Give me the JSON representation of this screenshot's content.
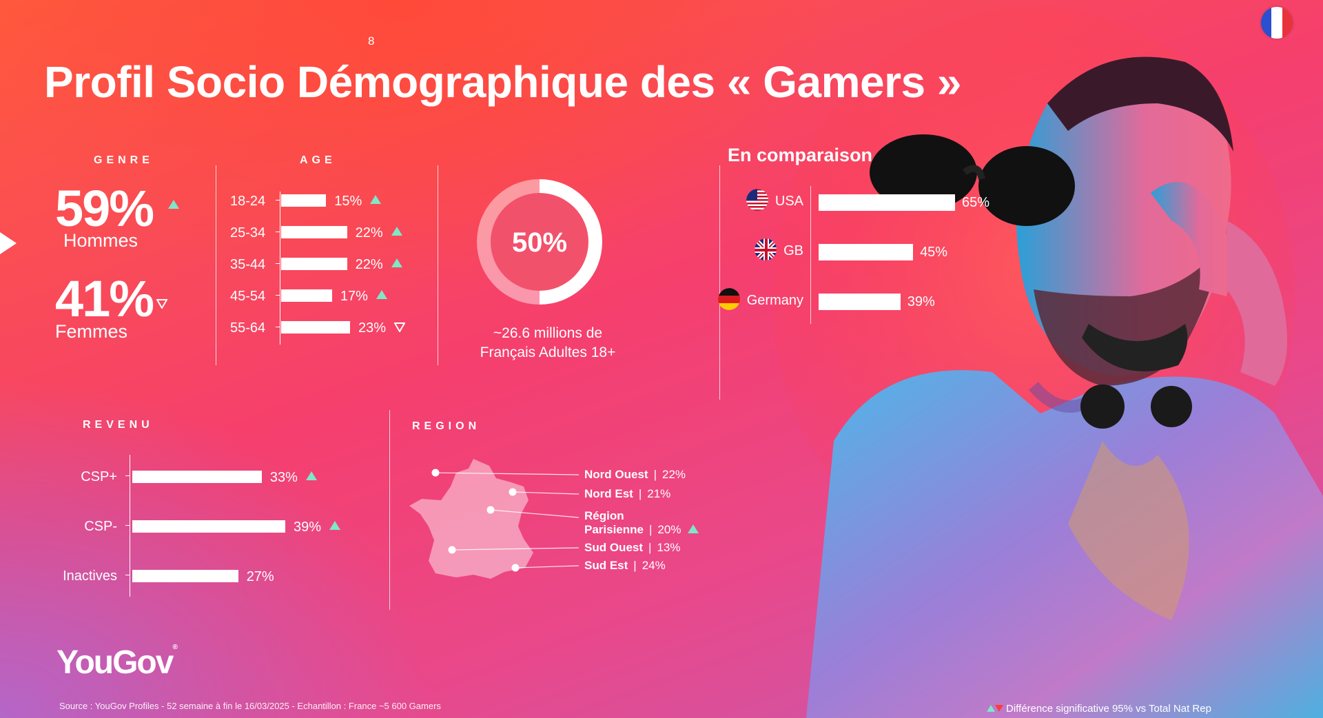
{
  "page_number": "8",
  "title": "Profil Socio Démographique des « Gamers »",
  "genre": {
    "heading": "GENRE",
    "items": [
      {
        "value": "59%",
        "label": "Hommes",
        "sig": "up"
      },
      {
        "value": "41%",
        "label": "Femmes",
        "sig": "down"
      }
    ]
  },
  "age": {
    "heading": "AGE"
  },
  "penetration": {
    "value": "50%",
    "caption_line1": "~26.6 millions de",
    "caption_line2": "Français Adultes 18+"
  },
  "comparison": {
    "title": "En comparaison"
  },
  "revenu": {
    "heading": "REVENU"
  },
  "region": {
    "heading": "REGION"
  },
  "chart_data": [
    {
      "type": "bar",
      "id": "age",
      "orientation": "horizontal",
      "categories": [
        "18-24",
        "25-34",
        "35-44",
        "45-54",
        "55-64"
      ],
      "values": [
        15,
        22,
        22,
        17,
        23
      ],
      "value_labels": [
        "15%",
        "22%",
        "22%",
        "17%",
        "23%"
      ],
      "significance": [
        "up",
        "up",
        "up",
        "up",
        "down"
      ],
      "xlim": [
        0,
        23
      ]
    },
    {
      "type": "bar",
      "id": "comparison",
      "orientation": "horizontal",
      "categories": [
        "USA",
        "GB",
        "Germany"
      ],
      "values": [
        65,
        45,
        39
      ],
      "value_labels": [
        "65%",
        "45%",
        "39%"
      ],
      "xlim": [
        0,
        65
      ]
    },
    {
      "type": "bar",
      "id": "revenu",
      "orientation": "horizontal",
      "categories": [
        "CSP+",
        "CSP-",
        "Inactives"
      ],
      "values": [
        33,
        39,
        27
      ],
      "value_labels": [
        "33%",
        "39%",
        "27%"
      ],
      "significance": [
        "up",
        "up",
        ""
      ],
      "xlim": [
        0,
        39
      ]
    },
    {
      "type": "table",
      "id": "region",
      "rows": [
        {
          "name": "Nord Ouest",
          "value": "22%",
          "sig": ""
        },
        {
          "name": "Nord Est",
          "value": "21%",
          "sig": ""
        },
        {
          "name_line1": "Région",
          "name_line2": "Parisienne",
          "value": "20%",
          "sig": "up"
        },
        {
          "name": "Sud Ouest",
          "value": "13%",
          "sig": ""
        },
        {
          "name": "Sud Est",
          "value": "24%",
          "sig": ""
        }
      ]
    }
  ],
  "logo": "YouGov",
  "logo_mark": "®",
  "footer_source": "Source :  YouGov Profiles - 52 semaine à fin le 16/03/2025   - Echantillon : France ~5 600 Gamers",
  "legend_note": "Différence significative 95% vs Total Nat Rep",
  "colors": {
    "up": "#7fe6c8",
    "down": "#ff3b3b",
    "fr_blue": "#2b4fd1",
    "fr_red": "#e8323c"
  },
  "icons": [
    "france-flag-icon",
    "usa-flag-icon",
    "uk-flag-icon",
    "germany-flag-icon",
    "france-map-icon",
    "triangle-up-icon",
    "triangle-down-icon",
    "play-arrow-icon"
  ]
}
